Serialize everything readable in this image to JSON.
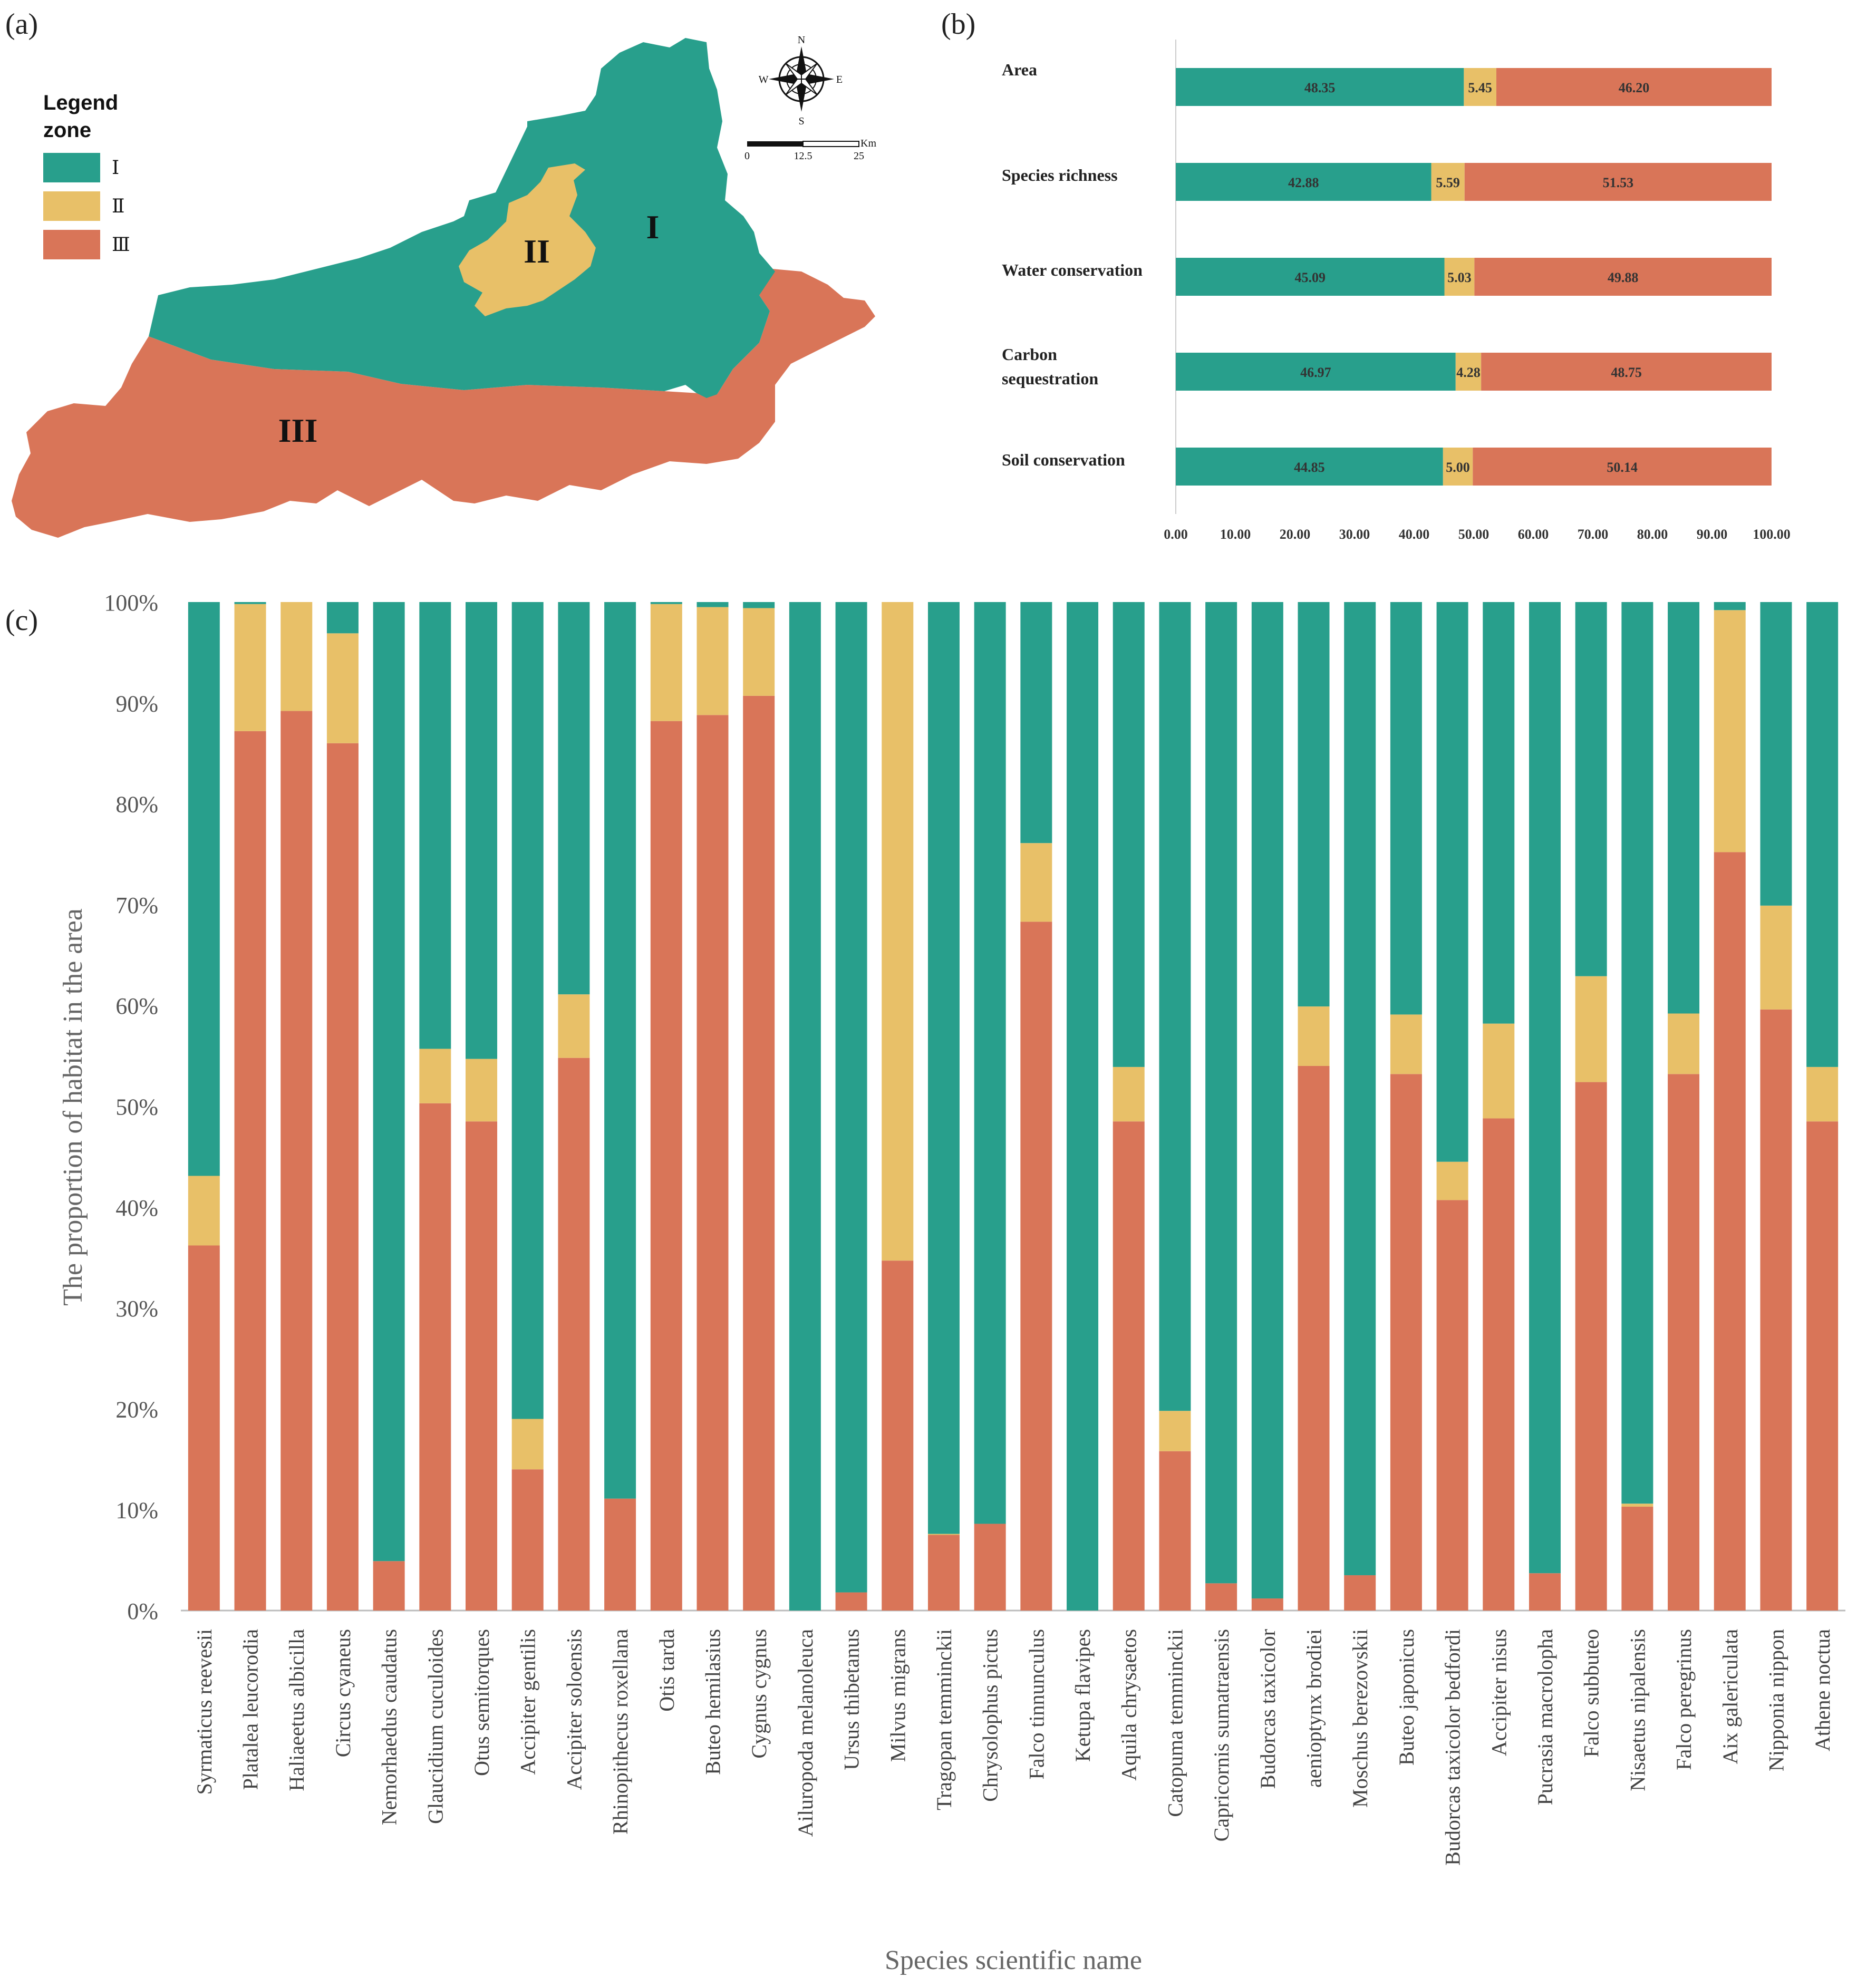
{
  "colors": {
    "zone1": "#289f8c",
    "zone2": "#e8c068",
    "zone3": "#d97558",
    "text": "#333333",
    "grid": "#bbbbbb"
  },
  "panel_labels": {
    "a": "(a)",
    "b": "(b)",
    "c": "(c)"
  },
  "map": {
    "legend_title": "Legend",
    "legend_subtitle": "zone",
    "legend_items": [
      "Ⅰ",
      "Ⅱ",
      "Ⅲ"
    ],
    "zone_labels": [
      "I",
      "II",
      "III"
    ],
    "compass": {
      "n": "N",
      "s": "S",
      "e": "E",
      "w": "W"
    },
    "scalebar": {
      "unit": "Km",
      "ticks": [
        "0",
        "12.5",
        "25"
      ]
    }
  },
  "chart_data": [
    {
      "id": "b",
      "type": "bar",
      "orientation": "horizontal",
      "stacked": true,
      "categories": [
        "Area",
        "Species richness",
        "Water conservation",
        "Carbon sequestration",
        "Soil conservation"
      ],
      "series": [
        {
          "name": "Ⅰ",
          "color": "#289f8c",
          "values": [
            48.35,
            42.88,
            45.09,
            46.97,
            44.85
          ],
          "labels": [
            "48.35",
            "42.88",
            "45.09",
            "46.97",
            "44.85"
          ]
        },
        {
          "name": "Ⅱ",
          "color": "#e8c068",
          "values": [
            5.45,
            5.59,
            5.03,
            4.28,
            5.0
          ],
          "labels": [
            "5.45",
            "5.59",
            "5.03",
            "4.28",
            "5.00"
          ]
        },
        {
          "name": "Ⅲ",
          "color": "#d97558",
          "values": [
            46.2,
            51.53,
            49.88,
            48.75,
            50.14
          ],
          "labels": [
            "46.20",
            "51.53",
            "49.88",
            "48.75",
            "50.14"
          ]
        }
      ],
      "xlim": [
        0,
        100
      ],
      "x_ticks": [
        "0.00",
        "10.00",
        "20.00",
        "30.00",
        "40.00",
        "50.00",
        "60.00",
        "70.00",
        "80.00",
        "90.00",
        "100.00"
      ]
    },
    {
      "id": "c",
      "type": "bar",
      "stacked": true,
      "xlabel": "Species scientific name",
      "ylabel": "The proportion of habitat in the area",
      "ylim": [
        0,
        100
      ],
      "y_ticks": [
        "0%",
        "10%",
        "20%",
        "30%",
        "40%",
        "50%",
        "60%",
        "70%",
        "80%",
        "90%",
        "100%"
      ],
      "categories": [
        "Syrmaticus reevesii",
        "Platalea leucorodia",
        "Haliaeetus albicilla",
        "Circus cyaneus",
        "Nemorhaedus caudatus",
        "Glaucidium cuculoides",
        "Otus semitorques",
        "Accipiter gentilis",
        "Accipiter soloensis",
        "Rhinopithecus roxellana",
        "Otis tarda",
        "Buteo hemilasius",
        "Cygnus cygnus",
        "Ailuropoda melanoleuca",
        "Ursus thibetanus",
        "Milvus migrans",
        "Tragopan temminckii",
        "Chrysolophus pictus",
        "Falco tinnunculus",
        "Ketupa flavipes",
        "Aquila chrysaetos",
        "Catopuma temminckii",
        "Capricornis sumatraensis",
        "Budorcas taxicolor",
        "aenioptynx brodiei",
        "Moschus berezovskii",
        "Buteo japonicus",
        "Budorcas taxicolor bedfordi",
        "Accipiter nisus",
        "Pucrasia macrolopha",
        "Falco subbuteo",
        "Nisaetus nipalensis",
        "Falco peregrinus",
        "Aix galericulata",
        "Nipponia nippon",
        "Athene noctua"
      ],
      "series": [
        {
          "name": "Ⅲ",
          "color": "#d97558",
          "values": [
            36.2,
            87.2,
            89.2,
            86.0,
            4.9,
            50.3,
            48.5,
            14.0,
            54.8,
            11.1,
            88.2,
            88.8,
            90.7,
            0.0,
            1.8,
            34.7,
            7.5,
            8.6,
            68.3,
            0.0,
            48.5,
            15.8,
            2.7,
            1.2,
            54.0,
            3.5,
            53.2,
            40.7,
            48.8,
            3.7,
            52.4,
            10.3,
            53.2,
            75.2,
            59.6,
            48.5
          ]
        },
        {
          "name": "Ⅱ",
          "color": "#e8c068",
          "values": [
            6.9,
            12.6,
            10.8,
            10.9,
            0.0,
            5.4,
            6.2,
            5.0,
            6.3,
            0.0,
            11.6,
            10.7,
            8.7,
            0.0,
            0.0,
            65.3,
            0.1,
            0.0,
            7.8,
            0.0,
            5.4,
            4.0,
            0.0,
            0.0,
            5.9,
            0.0,
            5.9,
            3.8,
            9.4,
            0.0,
            10.5,
            0.3,
            6.0,
            24.0,
            10.3,
            5.4
          ]
        },
        {
          "name": "Ⅰ",
          "color": "#289f8c",
          "values": [
            56.9,
            0.2,
            0.0,
            3.1,
            95.1,
            44.3,
            45.3,
            81.0,
            38.9,
            88.9,
            0.2,
            0.5,
            0.6,
            100.0,
            98.2,
            0.0,
            92.4,
            91.4,
            23.9,
            100.0,
            46.1,
            80.2,
            97.3,
            98.8,
            40.1,
            96.5,
            40.9,
            55.5,
            41.8,
            96.3,
            37.1,
            89.4,
            40.8,
            0.8,
            30.1,
            46.1
          ]
        }
      ]
    }
  ]
}
